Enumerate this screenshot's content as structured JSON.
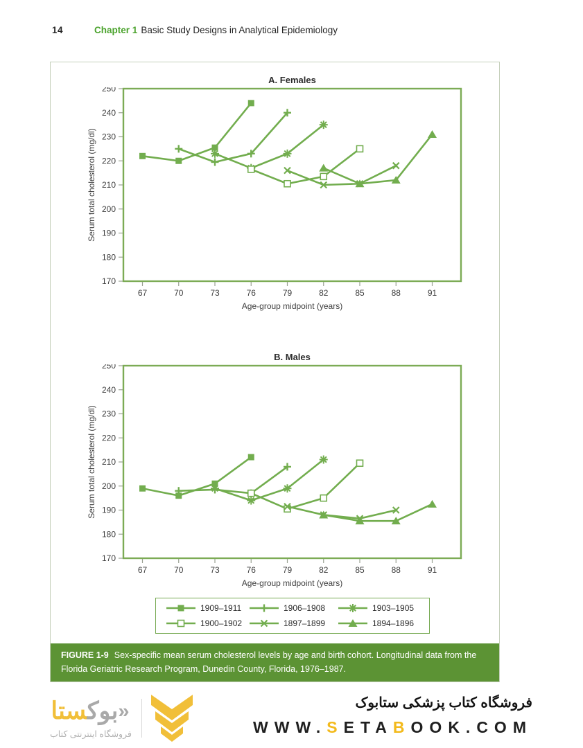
{
  "header": {
    "page_number": "14",
    "chapter_label": "Chapter 1",
    "chapter_title": "Basic Study Designs in Analytical Epidemiology"
  },
  "colors": {
    "series_green": "#72ad4e",
    "frame_green": "#7cab55",
    "tick_gray": "#9aa193",
    "label_dark": "#3d3d3d",
    "caption_bg": "#5c9334",
    "chapter_green": "#4ba32d",
    "box_border": "#c4cfba",
    "brand_yellow": "#f3ba1c",
    "logo_yellow": "#f1bf39",
    "logo_gray": "#a9a9a9"
  },
  "chart_data": [
    {
      "type": "line",
      "title": "A. Females",
      "xlabel": "Age-group midpoint (years)",
      "ylabel": "Serum total cholesterol (mg/dl)",
      "ylim": [
        170,
        250
      ],
      "yticks": [
        250,
        240,
        230,
        220,
        210,
        200,
        190,
        180,
        170
      ],
      "xticks": [
        67,
        70,
        73,
        76,
        79,
        82,
        85,
        88,
        91
      ],
      "grid": false,
      "series": [
        {
          "name": "1909–1911",
          "marker": "filled-square",
          "x": [
            67,
            70,
            73,
            76
          ],
          "y": [
            222,
            220,
            225.5,
            244
          ]
        },
        {
          "name": "1906–1908",
          "marker": "plus",
          "x": [
            70,
            73,
            76,
            79
          ],
          "y": [
            225,
            219.5,
            223,
            240
          ]
        },
        {
          "name": "1903–1905",
          "marker": "star",
          "x": [
            73,
            76,
            79,
            82
          ],
          "y": [
            223,
            217,
            223,
            235
          ]
        },
        {
          "name": "1900–1902",
          "marker": "open-square",
          "x": [
            76,
            79,
            82,
            85
          ],
          "y": [
            216.5,
            210.5,
            213.5,
            225
          ]
        },
        {
          "name": "1897–1899",
          "marker": "x",
          "x": [
            79,
            82,
            85,
            88
          ],
          "y": [
            216,
            210,
            210.5,
            218
          ]
        },
        {
          "name": "1894–1896",
          "marker": "triangle",
          "x": [
            82,
            85,
            88,
            91
          ],
          "y": [
            217,
            210.5,
            212,
            231
          ]
        }
      ]
    },
    {
      "type": "line",
      "title": "B. Males",
      "xlabel": "Age-group midpoint (years)",
      "ylabel": "Serum total cholesterol (mg/dl)",
      "ylim": [
        170,
        250
      ],
      "yticks": [
        250,
        240,
        230,
        220,
        210,
        200,
        190,
        180,
        170
      ],
      "xticks": [
        67,
        70,
        73,
        76,
        79,
        82,
        85,
        88,
        91
      ],
      "grid": false,
      "series": [
        {
          "name": "1909–1911",
          "marker": "filled-square",
          "x": [
            67,
            70,
            73,
            76
          ],
          "y": [
            199,
            196,
            201,
            212
          ]
        },
        {
          "name": "1906–1908",
          "marker": "plus",
          "x": [
            70,
            73,
            76,
            79
          ],
          "y": [
            198,
            198.5,
            197,
            208
          ]
        },
        {
          "name": "1903–1905",
          "marker": "star",
          "x": [
            73,
            76,
            79,
            82
          ],
          "y": [
            199,
            194,
            199,
            211
          ]
        },
        {
          "name": "1900–1902",
          "marker": "open-square",
          "x": [
            76,
            79,
            82,
            85
          ],
          "y": [
            197,
            190.5,
            195,
            209.5
          ]
        },
        {
          "name": "1897–1899",
          "marker": "x",
          "x": [
            79,
            82,
            85,
            88
          ],
          "y": [
            191.5,
            188,
            186.5,
            190
          ]
        },
        {
          "name": "1894–1896",
          "marker": "triangle",
          "x": [
            82,
            85,
            88,
            91
          ],
          "y": [
            188,
            185.5,
            185.5,
            192.5
          ]
        }
      ]
    }
  ],
  "legend_position": "bottom-center",
  "caption": {
    "label": "FIGURE 1-9",
    "text": "Sex-specific mean serum cholesterol levels by age and birth cohort. Longitudinal data from the Florida Geriatric Research Program, Dunedin County, Florida, 1976–1987."
  },
  "footer": {
    "persian_title": "فروشگاه کتاب پزشکی ستابوک",
    "url_segments": [
      {
        "text": "WWW.",
        "color": "#1f1f1f"
      },
      {
        "text": "S",
        "color": "#f3ba1c"
      },
      {
        "text": "ETA",
        "color": "#1f1f1f"
      },
      {
        "text": "B",
        "color": "#f3ba1c"
      },
      {
        "text": "OOK.COM",
        "color": "#1f1f1f"
      }
    ],
    "logo": {
      "wordmark_yellow": "ستا",
      "wordmark_gray": "بوک",
      "guillemet": "«",
      "subtitle": "فروشگاه اینترنتی کتاب"
    }
  }
}
